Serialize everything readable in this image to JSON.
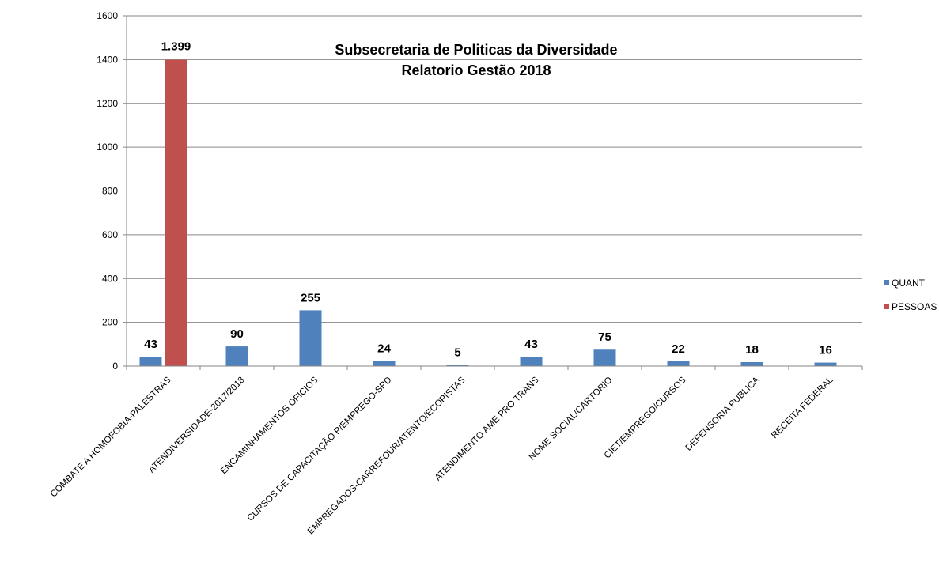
{
  "chart_data": {
    "type": "bar",
    "title": [
      "Subsecretaria de Politicas da Diversidade",
      "Relatorio Gestão 2018"
    ],
    "categories": [
      "COMBATE A HOMOFOBIA-PALESTRAS",
      "ATENDIVERSIDADE-2017/2018",
      "ENCAMINHAMENTOS OFICIOS",
      "CURSOS DE CAPACITAÇÃO P/EMPREGO-SPD",
      "EMPREGADOS-CARREFOUR/ATENTO/ECOPISTAS",
      "ATENDIMENTO AME PRO TRANS",
      "NOME SOCIAL/CARTORIO",
      "CIET/EMPREGO/CURSOS",
      "DEFENSORIA PUBLICA",
      "RECEITA FEDERAL"
    ],
    "series": [
      {
        "name": "QUANT",
        "color": "#4F81BD",
        "values": [
          43,
          90,
          255,
          24,
          5,
          43,
          75,
          22,
          18,
          16
        ],
        "labels": [
          "43",
          "90",
          "255",
          "24",
          "5",
          "43",
          "75",
          "22",
          "18",
          "16"
        ]
      },
      {
        "name": "PESSOAS",
        "color": "#C0504D",
        "values": [
          1399,
          null,
          null,
          null,
          null,
          null,
          null,
          null,
          null,
          null
        ],
        "labels": [
          "1.399",
          null,
          null,
          null,
          null,
          null,
          null,
          null,
          null,
          null
        ]
      }
    ],
    "yticks": [
      "0",
      "200",
      "400",
      "600",
      "800",
      "1000",
      "1200",
      "1400",
      "1600"
    ],
    "ylim": [
      0,
      1600
    ],
    "grid": true,
    "legend_position": "right"
  }
}
